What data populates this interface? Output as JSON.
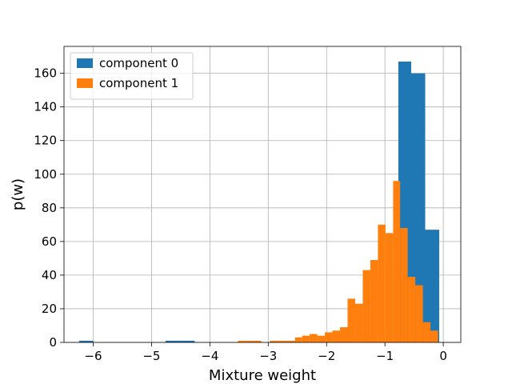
{
  "chart_data": {
    "type": "bar",
    "subtype": "histogram",
    "xlabel": "Mixture weight",
    "ylabel": "p(w)",
    "xlim": [
      -6.5,
      0.3
    ],
    "ylim": [
      0,
      176
    ],
    "x_ticks": [
      -6,
      -5,
      -4,
      -3,
      -2,
      -1,
      0
    ],
    "x_tick_labels": [
      "−6",
      "−5",
      "−4",
      "−3",
      "−2",
      "−1",
      "0"
    ],
    "y_ticks": [
      0,
      20,
      40,
      60,
      80,
      100,
      120,
      140,
      160
    ],
    "y_tick_labels": [
      "0",
      "20",
      "40",
      "60",
      "80",
      "100",
      "120",
      "140",
      "160"
    ],
    "grid": true,
    "legend_position": "top-left",
    "series": [
      {
        "name": "component 0",
        "color": "#1f77b4",
        "bins": [
          {
            "x0": -6.24,
            "x1": -6.0,
            "count": 1
          },
          {
            "x0": -4.76,
            "x1": -4.26,
            "count": 1
          },
          {
            "x0": -0.77,
            "x1": -0.55,
            "count": 167
          },
          {
            "x0": -0.55,
            "x1": -0.31,
            "count": 160
          },
          {
            "x0": -0.31,
            "x1": -0.07,
            "count": 67
          }
        ]
      },
      {
        "name": "component 1",
        "color": "#ff7f0e",
        "bins": [
          {
            "x0": -3.52,
            "x1": -3.12,
            "count": 1
          },
          {
            "x0": -2.97,
            "x1": -2.54,
            "count": 1
          },
          {
            "x0": -2.54,
            "x1": -2.42,
            "count": 3
          },
          {
            "x0": -2.42,
            "x1": -2.29,
            "count": 4
          },
          {
            "x0": -2.29,
            "x1": -2.16,
            "count": 5
          },
          {
            "x0": -2.16,
            "x1": -2.03,
            "count": 4
          },
          {
            "x0": -2.03,
            "x1": -1.9,
            "count": 6
          },
          {
            "x0": -1.9,
            "x1": -1.77,
            "count": 7
          },
          {
            "x0": -1.77,
            "x1": -1.64,
            "count": 9
          },
          {
            "x0": -1.64,
            "x1": -1.51,
            "count": 26
          },
          {
            "x0": -1.51,
            "x1": -1.38,
            "count": 23
          },
          {
            "x0": -1.38,
            "x1": -1.25,
            "count": 43
          },
          {
            "x0": -1.25,
            "x1": -1.12,
            "count": 49
          },
          {
            "x0": -1.12,
            "x1": -0.99,
            "count": 70
          },
          {
            "x0": -0.99,
            "x1": -0.86,
            "count": 65
          },
          {
            "x0": -0.86,
            "x1": -0.74,
            "count": 96
          },
          {
            "x0": -0.74,
            "x1": -0.61,
            "count": 68
          },
          {
            "x0": -0.61,
            "x1": -0.48,
            "count": 39
          },
          {
            "x0": -0.48,
            "x1": -0.35,
            "count": 34
          },
          {
            "x0": -0.35,
            "x1": -0.22,
            "count": 12
          },
          {
            "x0": -0.22,
            "x1": -0.09,
            "count": 7
          }
        ]
      }
    ]
  }
}
